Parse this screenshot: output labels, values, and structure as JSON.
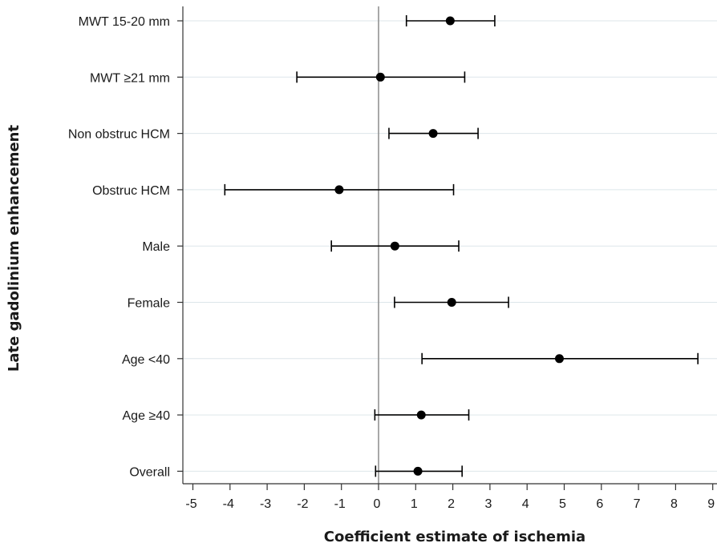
{
  "chart_data": {
    "type": "scatter",
    "subtype": "forest-plot",
    "xlabel": "Coefficient estimate of ischemia",
    "ylabel": "Late gadolinium enhancement",
    "xlim": [
      -5,
      9
    ],
    "xticks": [
      -5,
      -4,
      -3,
      -2,
      -1,
      0,
      1,
      2,
      3,
      4,
      5,
      6,
      7,
      8,
      9
    ],
    "reference_line": 0,
    "grid": "horizontal",
    "rows": [
      {
        "label": "MWT 15-20 mm",
        "estimate": 1.93,
        "ci_low": 0.75,
        "ci_high": 3.13
      },
      {
        "label": "MWT ≥21 mm",
        "estimate": 0.05,
        "ci_low": -2.2,
        "ci_high": 2.32
      },
      {
        "label": "Non obstruc HCM",
        "estimate": 1.47,
        "ci_low": 0.28,
        "ci_high": 2.68
      },
      {
        "label": "Obstruc HCM",
        "estimate": -1.06,
        "ci_low": -4.14,
        "ci_high": 2.02
      },
      {
        "label": "Male",
        "estimate": 0.44,
        "ci_low": -1.27,
        "ci_high": 2.16
      },
      {
        "label": "Female",
        "estimate": 1.97,
        "ci_low": 0.43,
        "ci_high": 3.5
      },
      {
        "label": "Age <40",
        "estimate": 4.87,
        "ci_low": 1.17,
        "ci_high": 8.6
      },
      {
        "label": "Age ≥40",
        "estimate": 1.15,
        "ci_low": -0.1,
        "ci_high": 2.43
      },
      {
        "label": "Overall",
        "estimate": 1.06,
        "ci_low": -0.08,
        "ci_high": 2.25
      }
    ]
  },
  "colors": {
    "marker": "#000000",
    "grid": "#dde6ea",
    "reference_line": "#8c8c8c",
    "axis": "#333333"
  }
}
